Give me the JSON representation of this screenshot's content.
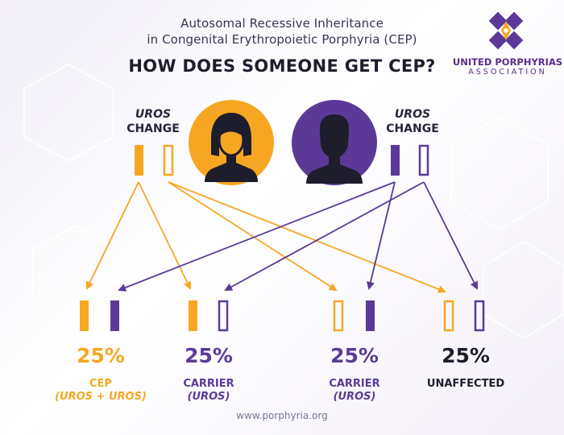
{
  "title_line1": "Autosomal Recessive Inheritance",
  "title_line2": "in Congenital Erythropoietic Porphyria (CEP)",
  "headline": "HOW DOES SOMEONE GET CEP?",
  "logo": {
    "name": "UNITED PORPHYRIAS",
    "sub": "ASSOCIATION",
    "icon": "diamond-cross-logo-icon"
  },
  "parents": [
    {
      "label_line1": "UROS",
      "label_line2": "CHANGE",
      "icon": "woman-silhouette-icon",
      "color": "#f6a623"
    },
    {
      "label_line1": "UROS",
      "label_line2": "CHANGE",
      "icon": "man-silhouette-icon",
      "color": "#5b3a97"
    }
  ],
  "outcomes": [
    {
      "percent": "25%",
      "label": "CEP",
      "sublabel": "(UROS + UROS)",
      "color": "#f6a623"
    },
    {
      "percent": "25%",
      "label": "CARRIER",
      "sublabel": "(UROS)",
      "color": "#5b3a97"
    },
    {
      "percent": "25%",
      "label": "CARRIER",
      "sublabel": "(UROS)",
      "color": "#5b3a97"
    },
    {
      "percent": "25%",
      "label": "UNAFFECTED",
      "sublabel": "",
      "color": "#1d1d2c"
    }
  ],
  "colors": {
    "orange": "#f6a623",
    "purple": "#5b3a97",
    "dark": "#1d1d2c"
  },
  "footer": "www.porphyria.org"
}
